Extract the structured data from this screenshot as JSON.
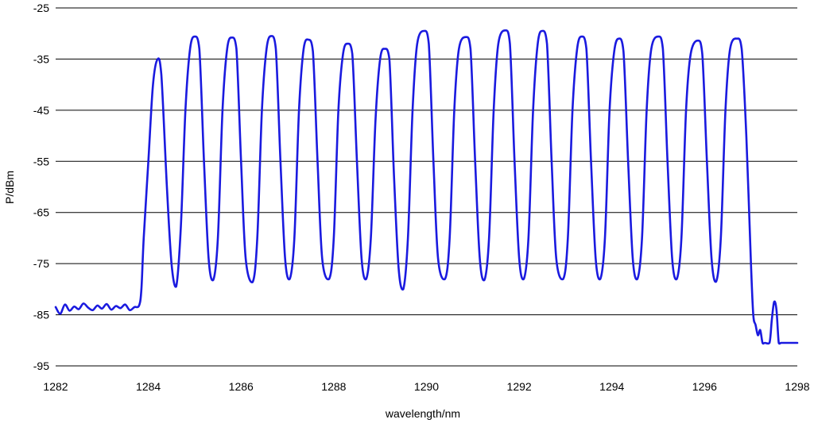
{
  "chart_data": {
    "type": "line",
    "title": "",
    "xlabel": "wavelength/nm",
    "ylabel": "P/dBm",
    "xlim": [
      1282,
      1298
    ],
    "ylim": [
      -95,
      -25
    ],
    "x_ticks": [
      "1282",
      "1284",
      "1286",
      "1288",
      "1290",
      "1292",
      "1294",
      "1296",
      "1298"
    ],
    "y_ticks": [
      "-25",
      "-35",
      "-45",
      "-55",
      "-65",
      "-75",
      "-85",
      "-95"
    ],
    "grid": "horizontal",
    "line_color": "#1a1adf",
    "noise_floor_dbm": -83.8,
    "peaks": [
      {
        "x": 1284.2,
        "y": -35.0
      },
      {
        "x": 1285.0,
        "y": -30.6
      },
      {
        "x": 1285.8,
        "y": -30.8
      },
      {
        "x": 1286.65,
        "y": -30.5
      },
      {
        "x": 1287.45,
        "y": -31.2
      },
      {
        "x": 1288.3,
        "y": -32.0
      },
      {
        "x": 1289.1,
        "y": -33.0
      },
      {
        "x": 1289.95,
        "y": -29.5
      },
      {
        "x": 1290.85,
        "y": -30.7
      },
      {
        "x": 1291.7,
        "y": -29.4
      },
      {
        "x": 1292.5,
        "y": -29.5
      },
      {
        "x": 1293.35,
        "y": -30.6
      },
      {
        "x": 1294.15,
        "y": -31.0
      },
      {
        "x": 1295.0,
        "y": -30.6
      },
      {
        "x": 1295.85,
        "y": -31.4
      },
      {
        "x": 1296.7,
        "y": -31.0
      }
    ],
    "troughs": [
      {
        "x": 1284.6,
        "y": -79.5
      },
      {
        "x": 1285.4,
        "y": -78.2
      },
      {
        "x": 1286.25,
        "y": -78.6
      },
      {
        "x": 1287.05,
        "y": -78.0
      },
      {
        "x": 1287.9,
        "y": -78.0
      },
      {
        "x": 1288.7,
        "y": -78.0
      },
      {
        "x": 1289.5,
        "y": -80.0
      },
      {
        "x": 1290.4,
        "y": -78.0
      },
      {
        "x": 1291.25,
        "y": -78.2
      },
      {
        "x": 1292.1,
        "y": -78.0
      },
      {
        "x": 1292.95,
        "y": -78.0
      },
      {
        "x": 1293.75,
        "y": -78.0
      },
      {
        "x": 1294.55,
        "y": -78.0
      },
      {
        "x": 1295.4,
        "y": -78.0
      },
      {
        "x": 1296.25,
        "y": -78.5
      }
    ],
    "series": [
      {
        "x": [
          1282.0,
          1282.1,
          1282.2,
          1282.3,
          1282.4,
          1282.5,
          1282.6,
          1282.7,
          1282.8,
          1282.9,
          1283.0,
          1283.1,
          1283.2,
          1283.3,
          1283.4,
          1283.5,
          1283.6,
          1283.7,
          1283.8,
          1283.85,
          1283.9,
          1284.0,
          1284.1,
          1284.2,
          1284.28,
          1284.4,
          1284.5,
          1284.6,
          1284.7,
          1284.8,
          1284.9,
          1285.0,
          1285.1,
          1285.2,
          1285.3,
          1285.4,
          1285.5,
          1285.6,
          1285.7,
          1285.8,
          1285.9,
          1286.0,
          1286.1,
          1286.25,
          1286.35,
          1286.45,
          1286.55,
          1286.65,
          1286.75,
          1286.85,
          1286.95,
          1287.05,
          1287.15,
          1287.25,
          1287.35,
          1287.45,
          1287.55,
          1287.65,
          1287.75,
          1287.9,
          1288.0,
          1288.1,
          1288.2,
          1288.3,
          1288.4,
          1288.5,
          1288.6,
          1288.7,
          1288.8,
          1288.9,
          1289.0,
          1289.1,
          1289.2,
          1289.3,
          1289.4,
          1289.5,
          1289.6,
          1289.7,
          1289.8,
          1289.95,
          1290.05,
          1290.15,
          1290.25,
          1290.4,
          1290.5,
          1290.6,
          1290.7,
          1290.85,
          1290.95,
          1291.05,
          1291.15,
          1291.25,
          1291.35,
          1291.45,
          1291.55,
          1291.7,
          1291.8,
          1291.9,
          1292.0,
          1292.1,
          1292.2,
          1292.3,
          1292.4,
          1292.5,
          1292.6,
          1292.7,
          1292.8,
          1292.95,
          1293.05,
          1293.15,
          1293.25,
          1293.35,
          1293.45,
          1293.55,
          1293.65,
          1293.75,
          1293.85,
          1293.95,
          1294.05,
          1294.15,
          1294.25,
          1294.35,
          1294.45,
          1294.55,
          1294.65,
          1294.75,
          1294.85,
          1295.0,
          1295.1,
          1295.2,
          1295.3,
          1295.4,
          1295.5,
          1295.6,
          1295.7,
          1295.85,
          1295.95,
          1296.05,
          1296.15,
          1296.25,
          1296.35,
          1296.45,
          1296.55,
          1296.7,
          1296.8,
          1296.9,
          1297.0,
          1297.05,
          1297.1,
          1297.15,
          1297.2,
          1297.25,
          1297.3,
          1297.4,
          1297.45,
          1297.5,
          1297.55,
          1297.6,
          1297.65,
          1297.7,
          1297.8,
          1298.0
        ],
        "y": [
          -83.5,
          -84.8,
          -83.0,
          -84.2,
          -83.4,
          -83.9,
          -82.8,
          -83.6,
          -84.1,
          -83.2,
          -83.8,
          -82.9,
          -84.0,
          -83.3,
          -83.7,
          -83.0,
          -84.1,
          -83.5,
          -83.2,
          -80.0,
          -70.0,
          -55.0,
          -40.0,
          -35.0,
          -38.0,
          -60.0,
          -75.0,
          -79.5,
          -68.0,
          -45.0,
          -33.0,
          -30.6,
          -33.0,
          -55.0,
          -74.0,
          -78.2,
          -70.0,
          -45.0,
          -33.0,
          -30.8,
          -33.0,
          -55.0,
          -74.0,
          -78.6,
          -70.0,
          -45.0,
          -33.0,
          -30.5,
          -33.0,
          -55.0,
          -74.0,
          -78.0,
          -70.0,
          -45.0,
          -33.0,
          -31.2,
          -33.5,
          -55.0,
          -74.0,
          -78.0,
          -70.0,
          -45.0,
          -34.0,
          -32.0,
          -34.0,
          -55.0,
          -74.0,
          -78.0,
          -70.0,
          -47.0,
          -35.0,
          -33.0,
          -35.0,
          -58.0,
          -76.0,
          -80.0,
          -70.0,
          -45.0,
          -32.0,
          -29.5,
          -32.0,
          -55.0,
          -74.0,
          -78.0,
          -70.0,
          -45.0,
          -33.0,
          -30.7,
          -33.0,
          -55.0,
          -74.0,
          -78.2,
          -70.0,
          -45.0,
          -32.0,
          -29.4,
          -32.0,
          -55.0,
          -74.0,
          -78.0,
          -70.0,
          -45.0,
          -32.0,
          -29.5,
          -32.0,
          -55.0,
          -74.0,
          -78.0,
          -70.0,
          -45.0,
          -33.0,
          -30.6,
          -33.0,
          -55.0,
          -74.0,
          -78.0,
          -70.0,
          -45.0,
          -33.5,
          -31.0,
          -33.5,
          -55.0,
          -74.0,
          -78.0,
          -70.0,
          -45.0,
          -33.0,
          -30.6,
          -33.0,
          -55.0,
          -74.0,
          -78.0,
          -70.0,
          -45.0,
          -34.0,
          -31.4,
          -34.0,
          -55.0,
          -74.0,
          -78.5,
          -70.0,
          -45.0,
          -33.0,
          -31.0,
          -33.0,
          -50.0,
          -75.0,
          -85.0,
          -87.0,
          -89.0,
          -88.0,
          -90.5,
          -90.5,
          -90.5,
          -86.0,
          -82.5,
          -84.0,
          -90.5,
          -90.5,
          -90.5,
          -90.5,
          -90.5
        ]
      }
    ]
  }
}
